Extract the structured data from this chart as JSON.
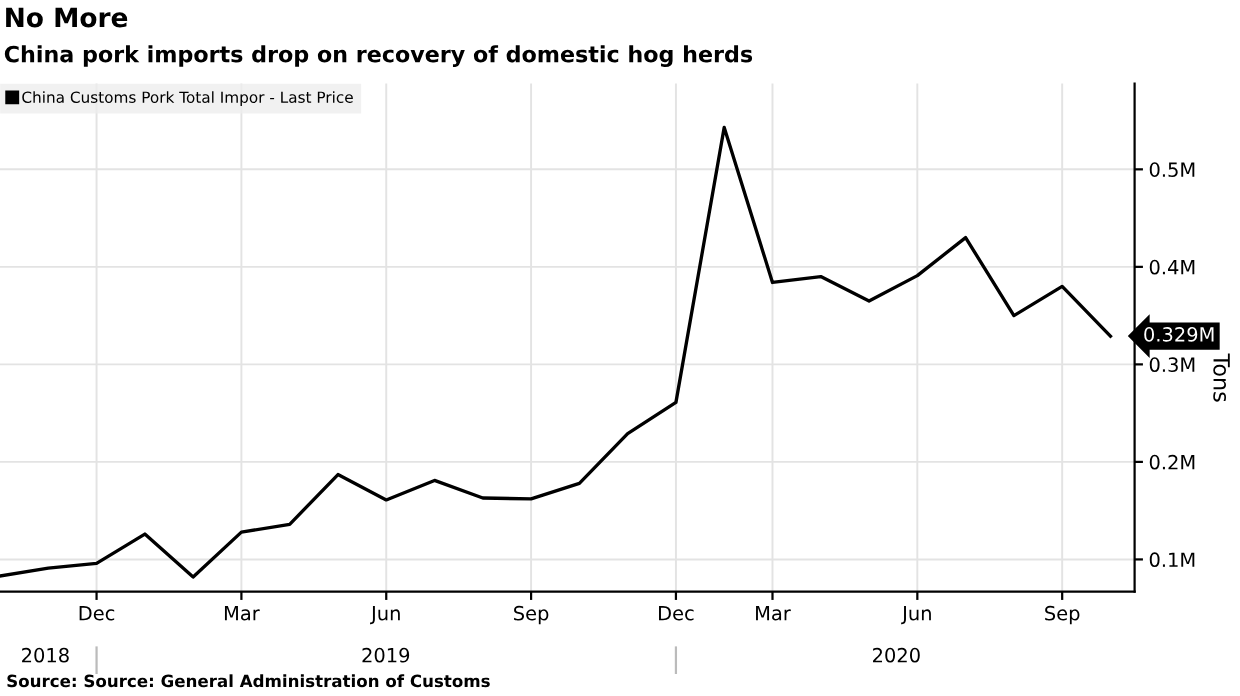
{
  "chart_data": {
    "type": "line",
    "title": "No More",
    "subtitle": "China pork imports drop on recovery of domestic hog herds",
    "ylabel": "Tons",
    "categories": [
      null,
      null,
      "Dec",
      null,
      null,
      "Mar",
      null,
      null,
      "Jun",
      null,
      null,
      "Sep",
      null,
      null,
      "Dec",
      null,
      "Mar",
      null,
      null,
      "Jun",
      null,
      null,
      "Sep",
      null
    ],
    "series": [
      {
        "name": "China Customs Pork Total Impor - Last Price",
        "color": "#000000",
        "values": [
          0.083,
          0.091,
          0.096,
          0.126,
          0.082,
          0.128,
          0.136,
          0.187,
          0.161,
          0.181,
          0.163,
          0.162,
          0.178,
          0.229,
          0.261,
          0.543,
          0.384,
          0.39,
          0.365,
          0.391,
          0.43,
          0.35,
          0.38,
          0.329
        ],
        "value_labels": [
          null,
          null,
          null,
          null,
          null,
          null,
          null,
          null,
          null,
          null,
          null,
          null,
          null,
          null,
          null,
          null,
          null,
          null,
          null,
          null,
          null,
          null,
          null,
          "0.329M"
        ]
      }
    ],
    "ylim": [
      0.067,
      0.588
    ],
    "yticks": [
      {
        "value": 0.1,
        "label": "0.1M"
      },
      {
        "value": 0.2,
        "label": "0.2M"
      },
      {
        "value": 0.3,
        "label": "0.3M"
      },
      {
        "value": 0.4,
        "label": "0.4M"
      },
      {
        "value": 0.5,
        "label": "0.5M"
      }
    ],
    "grid": true,
    "legend": "top left",
    "annotations": [
      "2018",
      "2019",
      "2020",
      "Source: Source: General Administration of Customs"
    ]
  }
}
